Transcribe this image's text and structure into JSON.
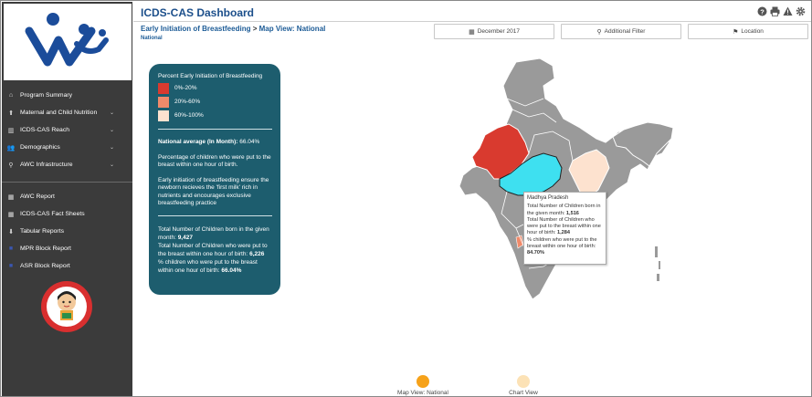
{
  "header": {
    "title": "ICDS-CAS Dashboard",
    "breadcrumb_indicator": "Early Initiation of Breastfeeding",
    "breadcrumb_separator": ">",
    "breadcrumb_view": "Map View: National",
    "location_label": "National",
    "icons": [
      "help-icon",
      "print-icon",
      "warning-icon",
      "gear-icon"
    ]
  },
  "filters": {
    "date": "December 2017",
    "additional": "Additional Filter",
    "location": "Location"
  },
  "sidebar": {
    "items": [
      {
        "label": "Program Summary",
        "icon": "home-icon",
        "has_chevron": false
      },
      {
        "label": "Maternal and Child Nutrition",
        "icon": "upload-icon",
        "has_chevron": true
      },
      {
        "label": "ICDS-CAS Reach",
        "icon": "chart-icon",
        "has_chevron": true
      },
      {
        "label": "Demographics",
        "icon": "users-icon",
        "has_chevron": true
      },
      {
        "label": "AWC Infrastructure",
        "icon": "map-pin-icon",
        "has_chevron": true
      }
    ],
    "reports": [
      {
        "label": "AWC Report",
        "icon": "table-icon"
      },
      {
        "label": "ICDS-CAS Fact Sheets",
        "icon": "table-icon"
      },
      {
        "label": "Tabular Reports",
        "icon": "download-icon"
      },
      {
        "label": "MPR Block Report",
        "icon": "report-icon"
      },
      {
        "label": "ASR Block Report",
        "icon": "report-icon"
      }
    ]
  },
  "panel": {
    "legend_title": "Percent Early Initiation of Breastfeeding",
    "legend": [
      {
        "label": "0%-20%",
        "color": "#d93a2f"
      },
      {
        "label": "20%-60%",
        "color": "#f08a6a"
      },
      {
        "label": "60%-100%",
        "color": "#fde2cf"
      }
    ],
    "avg_label": "National average (In Month):",
    "avg_value": "66.04%",
    "desc1": "Percentage of children who were put to the breast within one hour of birth.",
    "desc2": "Early initiation of breastfeeding ensure the newborn recieves the 'first milk' rich in nutrients and encourages exclusive breastfeeding practice",
    "stat_born_label": "Total Number of Children born in the given month:",
    "stat_born_value": "9,427",
    "stat_put_label": "Total Number of Children who were put to the breast within one hour of birth:",
    "stat_put_value": "6,226",
    "stat_pct_label": "% children who were put to the breast within one hour of birth:",
    "stat_pct_value": "66.04%"
  },
  "tooltip": {
    "state": "Madhya Pradesh",
    "born_label": "Total Number of Children born in the given month:",
    "born_value": "1,516",
    "put_label": "Total Number of Children who were put to the breast within one hour of birth:",
    "put_value": "1,284",
    "pct_label": "% children who were put to the breast within one hour of birth:",
    "pct_value": "84.70%"
  },
  "map_colors": {
    "default": "#9a9a9a",
    "highlight": "#3ee0f0",
    "low": "#d93a2f",
    "mid": "#f08a6a",
    "high": "#fde2cf"
  },
  "toggles": {
    "map_label": "Map View: National",
    "map_color": "#f6a21a",
    "chart_label": "Chart View",
    "chart_color": "#fce2b6"
  }
}
